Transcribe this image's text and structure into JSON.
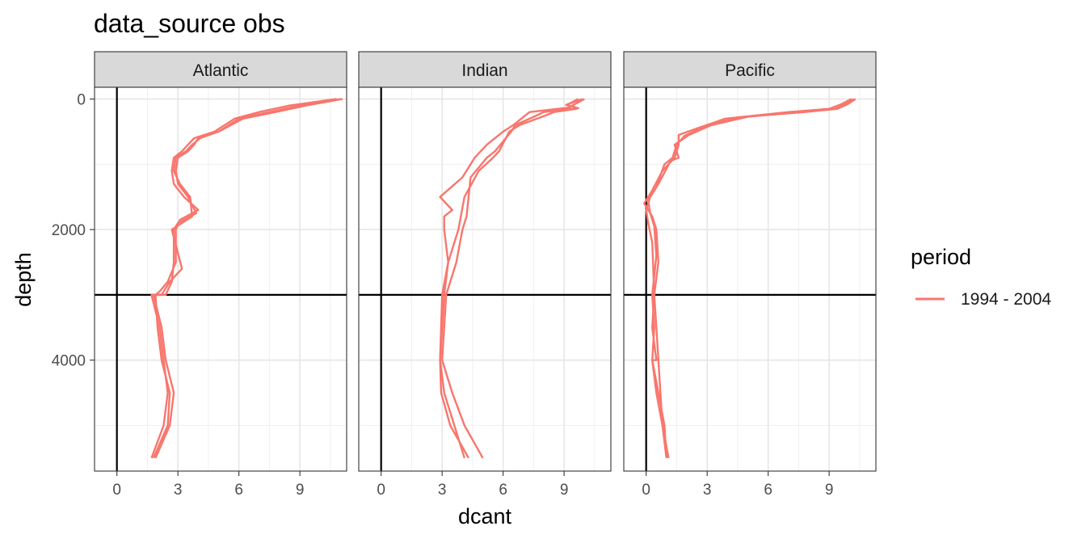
{
  "chart_data": {
    "type": "line",
    "title": "data_source obs",
    "xlabel": "dcant",
    "ylabel": "depth",
    "legend": {
      "title": "period",
      "position": "right",
      "entries": [
        {
          "label": "1994 - 2004",
          "color": "#F8766D"
        }
      ]
    },
    "xlim": [
      -1.1,
      11.3
    ],
    "ylim": [
      5700,
      -180
    ],
    "y_reversed": true,
    "x_ticks": [
      0,
      3,
      6,
      9
    ],
    "x_tick_labels": [
      "0",
      "3",
      "6",
      "9"
    ],
    "y_ticks": [
      0,
      2000,
      4000
    ],
    "y_tick_labels": [
      "0",
      "2000",
      "4000"
    ],
    "reference_lines": {
      "vline_x": 0,
      "hline_y": 3000
    },
    "grid": true,
    "series_color": "#F8766D",
    "panels": [
      {
        "name": "Atlantic",
        "lines": [
          {
            "x": [
              11.0,
              9.0,
              7.5,
              6.0,
              5.0,
              4.0,
              3.8,
              3.5,
              3.0,
              2.9,
              3.0,
              3.5,
              3.9,
              3.0,
              2.8,
              2.8,
              2.7,
              2.4,
              1.7,
              2.1,
              2.3,
              2.5,
              2.3,
              1.7
            ],
            "y": [
              0,
              100,
              200,
              300,
              500,
              600,
              700,
              800,
              900,
              1100,
              1300,
              1500,
              1750,
              1900,
              2000,
              2500,
              2800,
              3000,
              3000,
              3500,
              4000,
              4500,
              5000,
              5500
            ]
          },
          {
            "x": [
              10.8,
              8.5,
              7.0,
              5.8,
              4.8,
              3.8,
              3.5,
              3.2,
              2.8,
              2.7,
              2.8,
              3.3,
              4.0,
              3.1,
              2.9,
              2.9,
              2.5,
              2.1,
              1.9,
              2.0,
              2.2,
              2.6,
              2.5,
              1.8
            ],
            "y": [
              0,
              100,
              200,
              300,
              500,
              600,
              700,
              800,
              900,
              1100,
              1300,
              1500,
              1700,
              1850,
              2000,
              2500,
              2800,
              2950,
              3000,
              3500,
              4000,
              4500,
              5000,
              5500
            ]
          },
          {
            "x": [
              11.1,
              9.3,
              7.8,
              6.2,
              5.0,
              4.1,
              3.7,
              3.4,
              2.9,
              2.8,
              3.1,
              3.6,
              3.7,
              3.2,
              2.7,
              3.2,
              2.6,
              2.2,
              1.8,
              2.2,
              2.4,
              2.8,
              2.6,
              1.9
            ],
            "y": [
              0,
              100,
              200,
              300,
              500,
              600,
              700,
              800,
              900,
              1100,
              1300,
              1500,
              1800,
              1900,
              2000,
              2600,
              2800,
              3000,
              3000,
              3500,
              4000,
              4500,
              5000,
              5500
            ]
          }
        ]
      },
      {
        "name": "Indian",
        "lines": [
          {
            "x": [
              10.0,
              9.4,
              9.6,
              8.5,
              8.1,
              6.8,
              6.3,
              5.8,
              5.5,
              4.8,
              4.1,
              3.8,
              3.3,
              3.1,
              2.9,
              2.95,
              3.4,
              4.3
            ],
            "y": [
              0,
              100,
              150,
              200,
              250,
              400,
              500,
              800,
              900,
              1100,
              1500,
              2000,
              2500,
              3000,
              4000,
              4500,
              5000,
              5500
            ]
          },
          {
            "x": [
              9.7,
              9.2,
              9.3,
              7.3,
              7.1,
              6.5,
              6.0,
              5.2,
              4.6,
              4.0,
              2.9,
              3.5,
              3.1,
              3.1,
              3.3,
              3.0,
              2.9,
              3.1,
              3.6,
              4.1
            ],
            "y": [
              0,
              80,
              130,
              200,
              250,
              400,
              500,
              700,
              900,
              1200,
              1500,
              1700,
              1800,
              2000,
              2500,
              3000,
              4000,
              4500,
              5000,
              5500
            ]
          },
          {
            "x": [
              9.9,
              9.1,
              9.7,
              8.0,
              7.6,
              6.6,
              6.4,
              5.6,
              5.2,
              4.4,
              4.3,
              4.2,
              4.0,
              3.7,
              3.2,
              3.0,
              3.5,
              4.1,
              5.0
            ],
            "y": [
              0,
              90,
              140,
              200,
              260,
              400,
              500,
              800,
              900,
              1200,
              1500,
              1800,
              2000,
              2500,
              3000,
              4000,
              4500,
              5000,
              5500
            ]
          }
        ]
      },
      {
        "name": "Pacific",
        "lines": [
          {
            "x": [
              10.2,
              9.8,
              9.3,
              7.6,
              5.0,
              3.2,
              2.1,
              1.4,
              1.6,
              1.2,
              0.6,
              0.2,
              0.0,
              0.1,
              0.3,
              0.4,
              0.3,
              0.5,
              0.3,
              0.6,
              0.9,
              1.0
            ],
            "y": [
              0,
              80,
              150,
              200,
              270,
              400,
              550,
              700,
              900,
              950,
              1300,
              1500,
              1700,
              1900,
              2200,
              3000,
              3500,
              4000,
              4000,
              4500,
              5000,
              5500
            ]
          },
          {
            "x": [
              10.1,
              9.6,
              9.0,
              7.0,
              3.9,
              2.5,
              1.6,
              1.6,
              1.4,
              0.8,
              0.3,
              -0.1,
              0.3,
              0.5,
              0.6,
              0.4,
              0.5,
              0.6,
              0.7,
              0.8,
              1.0
            ],
            "y": [
              0,
              80,
              150,
              200,
              300,
              450,
              550,
              700,
              900,
              1100,
              1400,
              1600,
              1800,
              2000,
              2500,
              3000,
              3500,
              4000,
              4500,
              5000,
              5500
            ]
          },
          {
            "x": [
              10.3,
              9.9,
              9.4,
              7.8,
              4.5,
              2.9,
              1.9,
              1.5,
              1.3,
              0.9,
              0.5,
              0.1,
              0.2,
              0.4,
              0.5,
              0.3,
              0.4,
              0.3,
              0.5,
              0.8,
              1.1
            ],
            "y": [
              0,
              80,
              150,
              200,
              280,
              420,
              560,
              700,
              900,
              1000,
              1350,
              1550,
              1750,
              1950,
              2400,
              3000,
              3500,
              4000,
              4500,
              5000,
              5500
            ]
          }
        ]
      }
    ]
  }
}
